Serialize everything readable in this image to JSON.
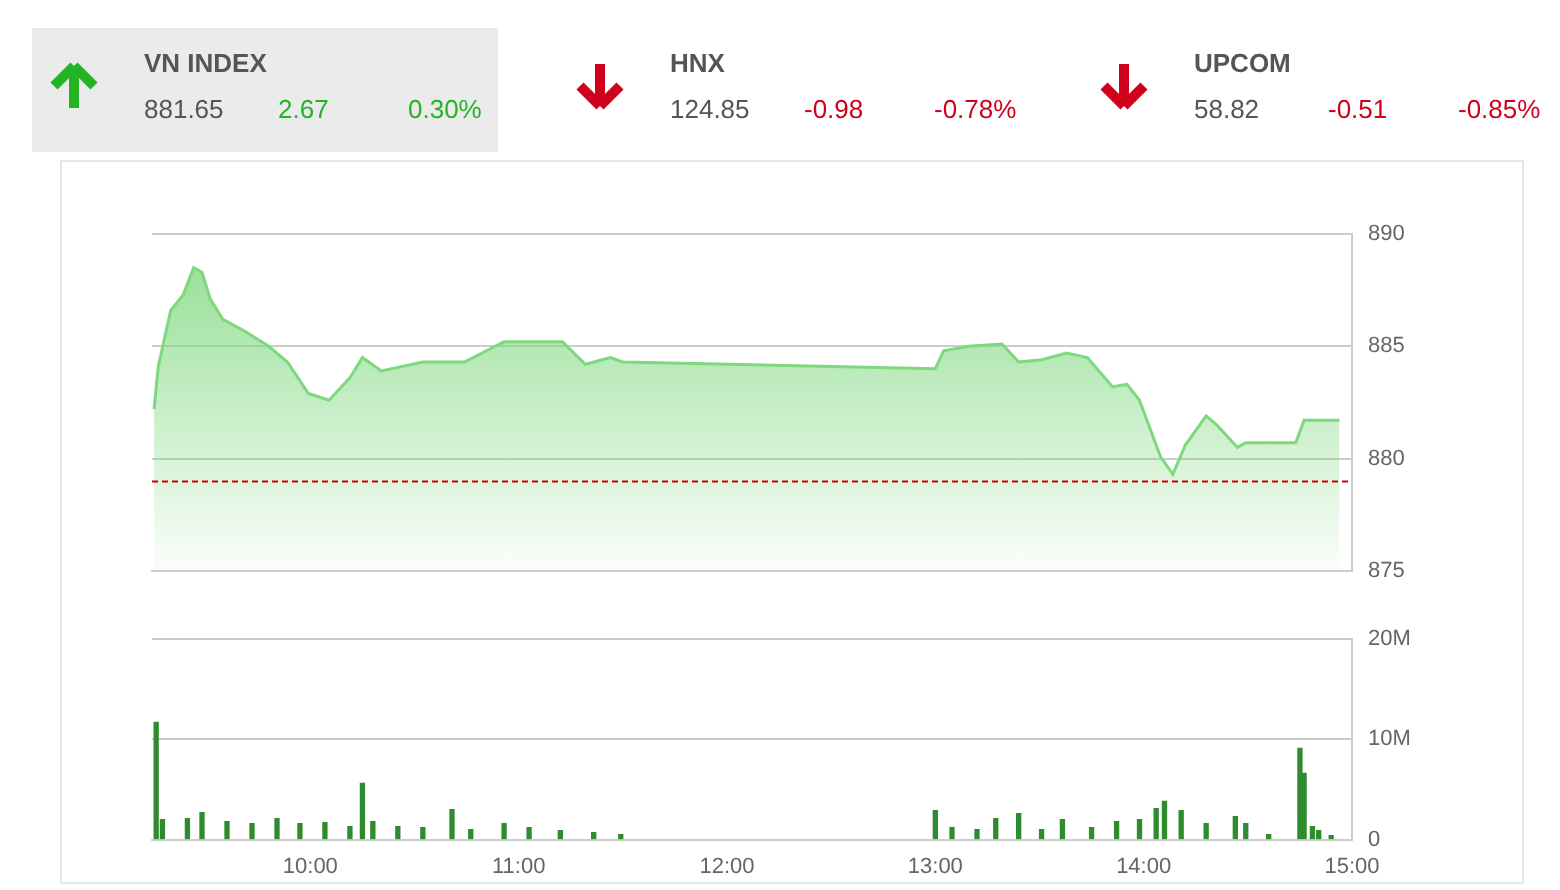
{
  "chart_data": [
    {
      "type": "other",
      "categories": [
        "VN INDEX",
        "HNX",
        "UPCOM"
      ],
      "colors": [
        "#22b422",
        "#d0021b",
        "#d0021b"
      ],
      "annotations": [
        "881.65",
        "2.67",
        "0.30%",
        "124.85",
        "-0.98",
        "-0.78%",
        "58.82",
        "-0.51",
        "-0.85%"
      ]
    },
    {
      "type": "area",
      "color": "#7ed87e",
      "xlim": [
        9.24,
        15
      ],
      "ylim": [
        875,
        890
      ],
      "yticks": [
        875,
        880,
        885,
        890
      ],
      "grid": "y",
      "tick_labels": "y",
      "x": [
        9.25,
        9.27,
        9.33,
        9.39,
        9.44,
        9.48,
        9.52,
        9.58,
        9.68,
        9.8,
        9.89,
        9.99,
        10.09,
        10.19,
        10.25,
        10.34,
        10.54,
        10.74,
        10.93,
        11.21,
        11.32,
        11.44,
        11.5,
        13.0,
        13.04,
        13.16,
        13.32,
        13.4,
        13.51,
        13.63,
        13.73,
        13.85,
        13.92,
        13.98,
        14.08,
        14.14,
        14.2,
        14.3,
        14.35,
        14.45,
        14.49,
        14.73,
        14.77,
        14.94
      ],
      "values": [
        882.2,
        884.1,
        886.6,
        887.3,
        888.5,
        888.3,
        887.1,
        886.2,
        885.7,
        885.0,
        884.3,
        882.9,
        882.6,
        883.6,
        884.5,
        883.9,
        884.3,
        884.3,
        885.2,
        885.2,
        884.2,
        884.5,
        884.3,
        884.0,
        884.8,
        885.0,
        885.1,
        884.3,
        884.4,
        884.7,
        884.5,
        883.2,
        883.3,
        882.6,
        880.1,
        879.3,
        880.6,
        881.9,
        881.5,
        880.5,
        880.7,
        880.7,
        881.7,
        881.7
      ],
      "ref_lines": [
        {
          "axis": "y",
          "value": 878.98,
          "color": "#cc0000",
          "line_style": "dashed"
        }
      ]
    },
    {
      "type": "bar",
      "color": "#2e8b2e",
      "xlim": [
        9.24,
        15
      ],
      "xticks": [
        {
          "value": 10,
          "label": "10:00"
        },
        {
          "value": 11,
          "label": "11:00"
        },
        {
          "value": 12,
          "label": "12:00"
        },
        {
          "value": 13,
          "label": "13:00"
        },
        {
          "value": 14,
          "label": "14:00"
        },
        {
          "value": 15,
          "label": "15:00"
        }
      ],
      "ylim": [
        0,
        20
      ],
      "yticks": [
        0,
        {
          "value": 10,
          "label": "10M"
        },
        {
          "value": 20,
          "label": "20M"
        }
      ],
      "grid": "y",
      "x": [
        9.26,
        9.29,
        9.41,
        9.48,
        9.6,
        9.72,
        9.84,
        9.95,
        10.07,
        10.19,
        10.25,
        10.3,
        10.42,
        10.54,
        10.68,
        10.77,
        10.93,
        11.05,
        11.2,
        11.36,
        11.49,
        13.0,
        13.08,
        13.2,
        13.29,
        13.4,
        13.51,
        13.61,
        13.75,
        13.87,
        13.98,
        14.06,
        14.1,
        14.18,
        14.3,
        14.44,
        14.49,
        14.6,
        14.75,
        14.77,
        14.81,
        14.84,
        14.9
      ],
      "values": [
        11.7,
        2.0,
        2.1,
        2.7,
        1.8,
        1.6,
        2.1,
        1.6,
        1.7,
        1.3,
        5.6,
        1.8,
        1.3,
        1.2,
        3.0,
        1.0,
        1.6,
        1.2,
        0.9,
        0.7,
        0.5,
        2.9,
        1.2,
        1.0,
        2.1,
        2.6,
        1.0,
        2.0,
        1.2,
        1.8,
        2.0,
        3.1,
        3.8,
        2.9,
        1.6,
        2.3,
        1.6,
        0.5,
        9.1,
        6.6,
        1.3,
        0.9,
        0.4
      ]
    }
  ]
}
